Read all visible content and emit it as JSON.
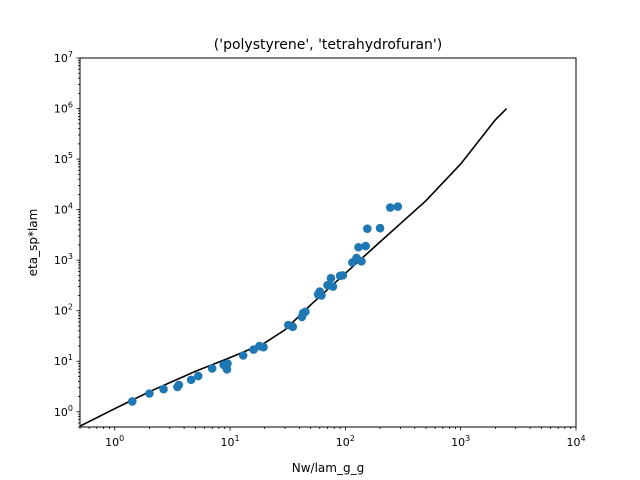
{
  "chart_data": {
    "type": "scatter",
    "title": "('polystyrene', 'tetrahydrofuran')",
    "xlabel": "Nw/lam_g_g",
    "ylabel": "eta_sp*lam",
    "xscale": "log",
    "yscale": "log",
    "xlim": [
      0.5,
      10000
    ],
    "ylim": [
      0.5,
      10000000
    ],
    "xtick_exponents": [
      0,
      1,
      2,
      3,
      4
    ],
    "ytick_exponents": [
      0,
      1,
      2,
      3,
      4,
      5,
      6,
      7
    ],
    "tick_base": "10",
    "grid": false,
    "series": [
      {
        "kind": "points",
        "color": "#1f77b4",
        "x": [
          1.42,
          2.0,
          2.65,
          3.5,
          3.6,
          4.6,
          5.3,
          7.0,
          8.8,
          9.4,
          9.5,
          13,
          16,
          18,
          19.5,
          32,
          35,
          42,
          43,
          45,
          58,
          60,
          62,
          70,
          75,
          78,
          90,
          95,
          115,
          125,
          130,
          138,
          150,
          155,
          200,
          245,
          285
        ],
        "y": [
          1.6,
          2.3,
          2.8,
          3.1,
          3.4,
          4.3,
          5.1,
          7.2,
          8.5,
          6.9,
          9.0,
          13,
          17,
          20,
          19,
          52,
          48,
          75,
          90,
          95,
          210,
          240,
          200,
          320,
          440,
          300,
          490,
          500,
          900,
          1100,
          1800,
          950,
          1900,
          4200,
          4300,
          11000,
          11500
        ]
      },
      {
        "kind": "fit-line",
        "color": "#000000",
        "x": [
          0.5,
          1,
          2,
          5,
          10,
          20,
          30,
          50,
          100,
          200,
          500,
          1000,
          2000,
          2500
        ],
        "y": [
          0.52,
          1.15,
          2.5,
          6.3,
          11.8,
          23,
          42,
          130,
          550,
          2300,
          15000,
          80000,
          600000,
          1000000
        ]
      }
    ]
  }
}
